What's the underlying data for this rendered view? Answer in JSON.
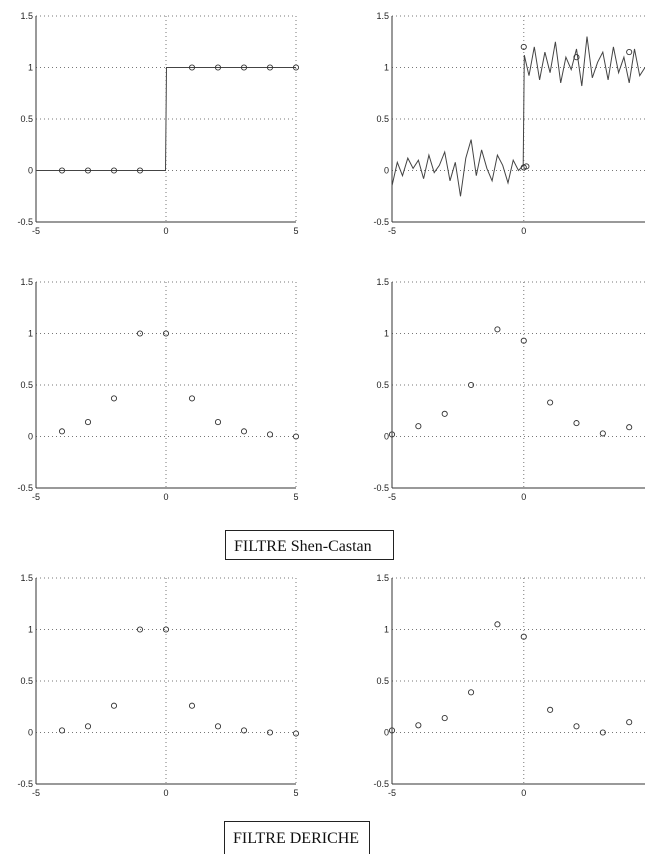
{
  "chart_data": [
    {
      "type": "line",
      "panel": "top-left",
      "xlim": [
        -5,
        5
      ],
      "ylim": [
        -0.5,
        1.5
      ],
      "xticks": [
        "-5",
        "0",
        "5"
      ],
      "yticks": [
        "-0.5",
        "0",
        "0.5",
        "1",
        "1.5"
      ],
      "grid": true,
      "series": [
        {
          "style": "line",
          "x": [
            -5,
            -0.02,
            0.02,
            5
          ],
          "y": [
            0,
            0,
            1,
            1
          ]
        },
        {
          "style": "markers",
          "x": [
            -4,
            -3,
            -2,
            -1,
            1,
            2,
            3,
            4,
            5
          ],
          "y": [
            0,
            0,
            0,
            0,
            1,
            1,
            1,
            1,
            1
          ]
        }
      ]
    },
    {
      "type": "line",
      "panel": "top-right",
      "xlim": [
        -5,
        4.6
      ],
      "ylim": [
        -0.5,
        1.5
      ],
      "xticks": [
        "-5",
        "0"
      ],
      "yticks": [
        "-0.5",
        "0",
        "0.5",
        "1",
        "1.5"
      ],
      "grid": true,
      "series": [
        {
          "style": "line",
          "x": [
            -5,
            -4.8,
            -4.6,
            -4.4,
            -4.2,
            -4,
            -3.8,
            -3.6,
            -3.4,
            -3.2,
            -3,
            -2.8,
            -2.6,
            -2.4,
            -2.2,
            -2,
            -1.8,
            -1.6,
            -1.4,
            -1.2,
            -1,
            -0.8,
            -0.6,
            -0.4,
            -0.2,
            -0.02,
            0.02,
            0.2,
            0.4,
            0.6,
            0.8,
            1,
            1.2,
            1.4,
            1.6,
            1.8,
            2,
            2.2,
            2.4,
            2.6,
            2.8,
            3,
            3.2,
            3.4,
            3.6,
            3.8,
            4,
            4.2,
            4.4,
            4.6
          ],
          "y": [
            -0.15,
            0.08,
            -0.05,
            0.12,
            0.02,
            0.1,
            -0.08,
            0.15,
            -0.02,
            0.05,
            0.18,
            -0.1,
            0.08,
            -0.25,
            0.12,
            0.3,
            -0.05,
            0.2,
            0.02,
            -0.1,
            0.15,
            0.05,
            -0.12,
            0.1,
            0.0,
            0.05,
            1.12,
            0.92,
            1.2,
            0.88,
            1.15,
            0.95,
            1.25,
            0.85,
            1.1,
            0.98,
            1.18,
            0.82,
            1.3,
            0.9,
            1.05,
            1.15,
            0.88,
            1.2,
            0.95,
            1.1,
            0.85,
            1.18,
            0.92,
            1.0
          ]
        },
        {
          "style": "markers",
          "x": [
            0,
            0.1,
            0,
            2,
            4
          ],
          "y": [
            0.03,
            0.04,
            1.2,
            1.1,
            1.15
          ]
        }
      ]
    },
    {
      "type": "scatter",
      "panel": "middle-left",
      "xlim": [
        -5,
        5
      ],
      "ylim": [
        -0.5,
        1.5
      ],
      "xticks": [
        "-5",
        "0",
        "5"
      ],
      "yticks": [
        "-0.5",
        "0",
        "0.5",
        "1",
        "1.5"
      ],
      "grid": true,
      "x": [
        -4,
        -3,
        -2,
        -1,
        0,
        1,
        2,
        3,
        4,
        5
      ],
      "y": [
        0.05,
        0.14,
        0.37,
        1.0,
        1.0,
        0.37,
        0.14,
        0.05,
        0.02,
        0.0
      ]
    },
    {
      "type": "scatter",
      "panel": "middle-right",
      "xlim": [
        -5,
        4.6
      ],
      "ylim": [
        -0.5,
        1.5
      ],
      "xticks": [
        "-5",
        "0"
      ],
      "yticks": [
        "-0.5",
        "0",
        "0.5",
        "1",
        "1.5"
      ],
      "grid": true,
      "x": [
        -5,
        -4,
        -3,
        -2,
        -1,
        0,
        1,
        2,
        3,
        4
      ],
      "y": [
        0.02,
        0.1,
        0.22,
        0.5,
        1.04,
        0.93,
        0.33,
        0.13,
        0.03,
        0.09
      ]
    },
    {
      "type": "scatter",
      "panel": "bottom-left",
      "xlim": [
        -5,
        5
      ],
      "ylim": [
        -0.5,
        1.5
      ],
      "xticks": [
        "-5",
        "0",
        "5"
      ],
      "yticks": [
        "-0.5",
        "0",
        "0.5",
        "1",
        "1.5"
      ],
      "grid": true,
      "x": [
        -4,
        -3,
        -2,
        -1,
        0,
        1,
        2,
        3,
        4,
        5
      ],
      "y": [
        0.02,
        0.06,
        0.26,
        1.0,
        1.0,
        0.26,
        0.06,
        0.02,
        0.0,
        -0.01
      ]
    },
    {
      "type": "scatter",
      "panel": "bottom-right",
      "xlim": [
        -5,
        4.6
      ],
      "ylim": [
        -0.5,
        1.5
      ],
      "xticks": [
        "-5",
        "0"
      ],
      "yticks": [
        "-0.5",
        "0",
        "0.5",
        "1",
        "1.5"
      ],
      "grid": true,
      "x": [
        -5,
        -4,
        -3,
        -2,
        -1,
        0,
        1,
        2,
        3,
        4
      ],
      "y": [
        0.02,
        0.07,
        0.14,
        0.39,
        1.05,
        0.93,
        0.22,
        0.06,
        0.0,
        0.1
      ]
    }
  ],
  "captions": {
    "shen_castan": "FILTRE Shen-Castan",
    "deriche": "FILTRE DERICHE"
  }
}
